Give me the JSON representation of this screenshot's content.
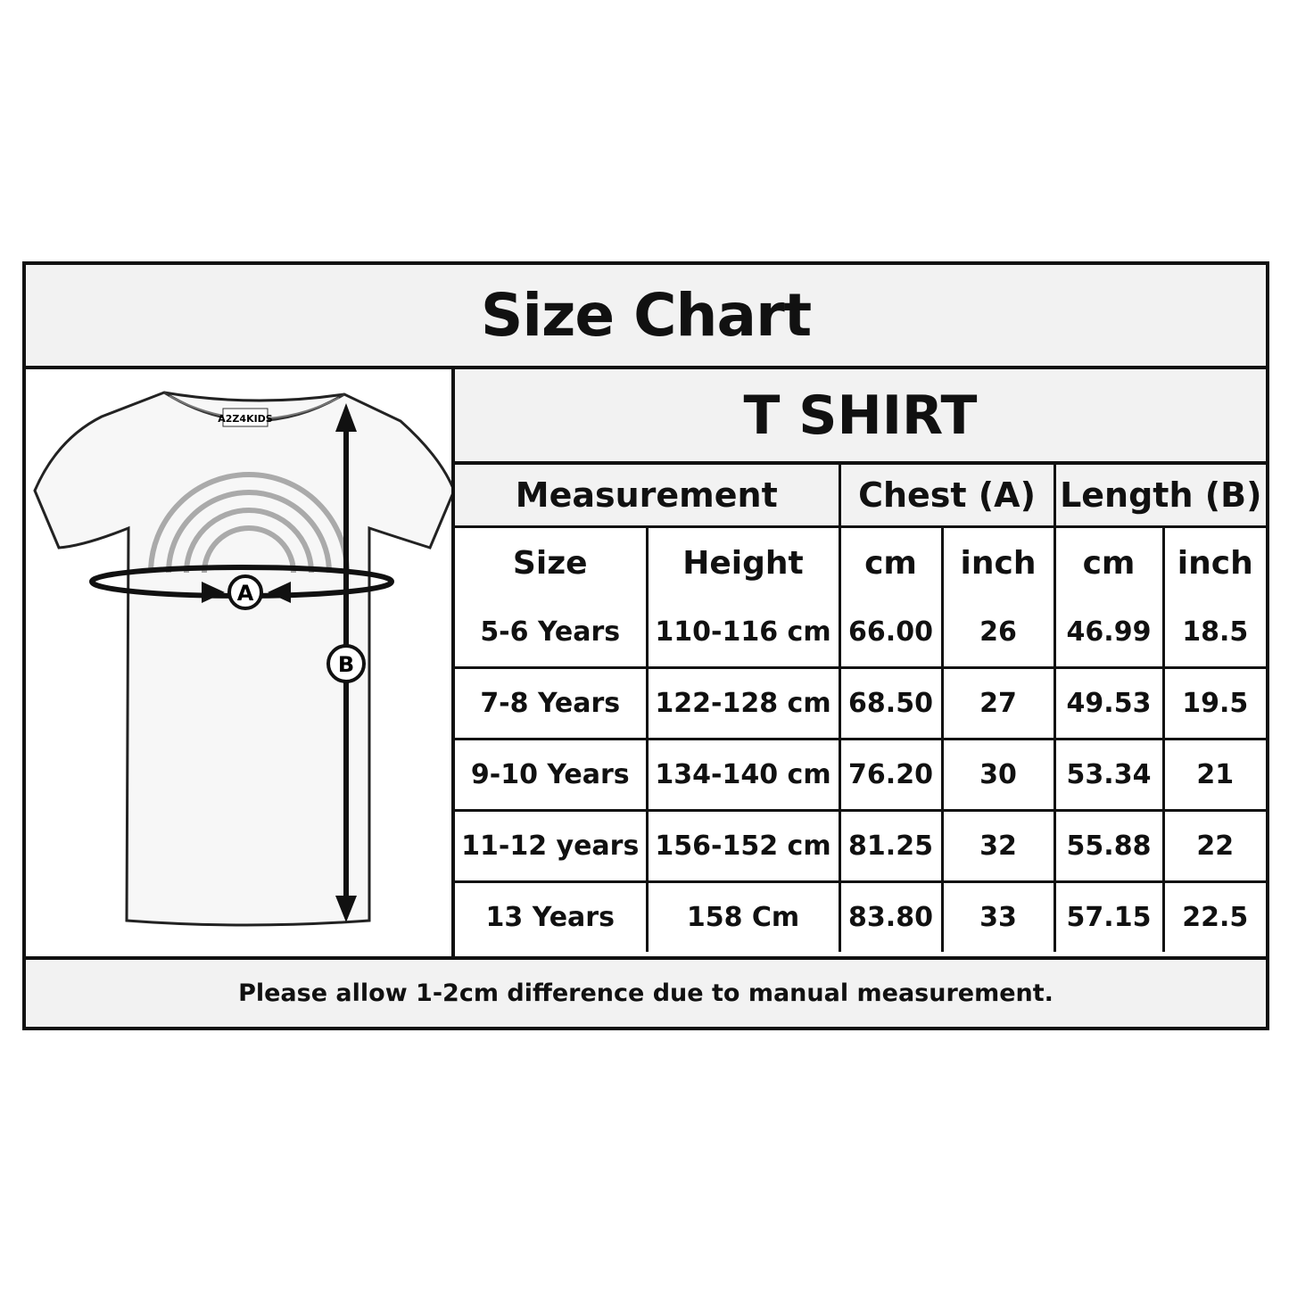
{
  "title": "Size Chart",
  "product": "T SHIRT",
  "illustration": {
    "brand_label": "A2Z 4 KIDS",
    "marker_a": "A",
    "marker_b": "B"
  },
  "table": {
    "group_headers": [
      "Measurement",
      "Chest (A)",
      "Length (B)"
    ],
    "sub_headers": [
      "Size",
      "Height",
      "cm",
      "inch",
      "cm",
      "inch"
    ],
    "rows": [
      [
        "5-6 Years",
        "110-116 cm",
        "66.00",
        "26",
        "46.99",
        "18.5"
      ],
      [
        "7-8 Years",
        "122-128 cm",
        "68.50",
        "27",
        "49.53",
        "19.5"
      ],
      [
        "9-10 Years",
        "134-140 cm",
        "76.20",
        "30",
        "53.34",
        "21"
      ],
      [
        "11-12 years",
        "156-152 cm",
        "81.25",
        "32",
        "55.88",
        "22"
      ],
      [
        "13 Years",
        "158 Cm",
        "83.80",
        "33",
        "57.15",
        "22.5"
      ]
    ]
  },
  "note": "Please allow 1-2cm difference due to manual measurement.",
  "colors": {
    "header_bg": "#f2f2f2",
    "border": "#111111"
  }
}
